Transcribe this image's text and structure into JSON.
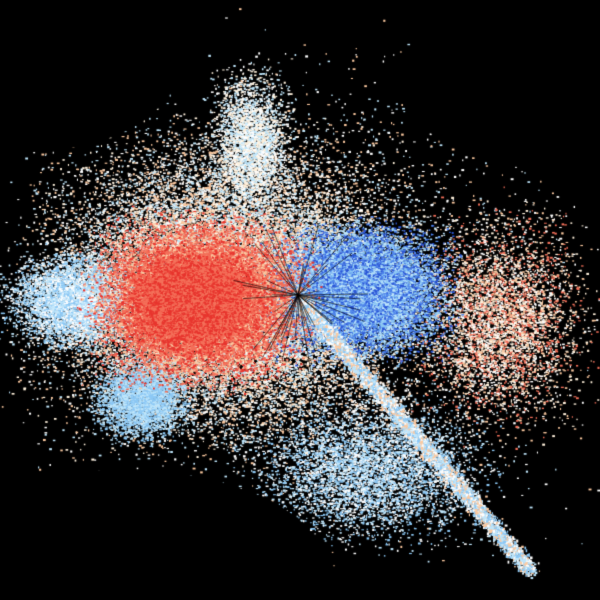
{
  "map": {
    "background": "#000000",
    "palette": {
      "deep_red": "#e8352e",
      "red": "#f4705a",
      "peach": "#fcc9a0",
      "cream": "#fff1dc",
      "white": "#ffffff",
      "light_blue": "#bfe6fb",
      "sky_blue": "#8cc8f5",
      "blue": "#4f86ec",
      "deep_blue": "#2a55d6"
    }
  }
}
